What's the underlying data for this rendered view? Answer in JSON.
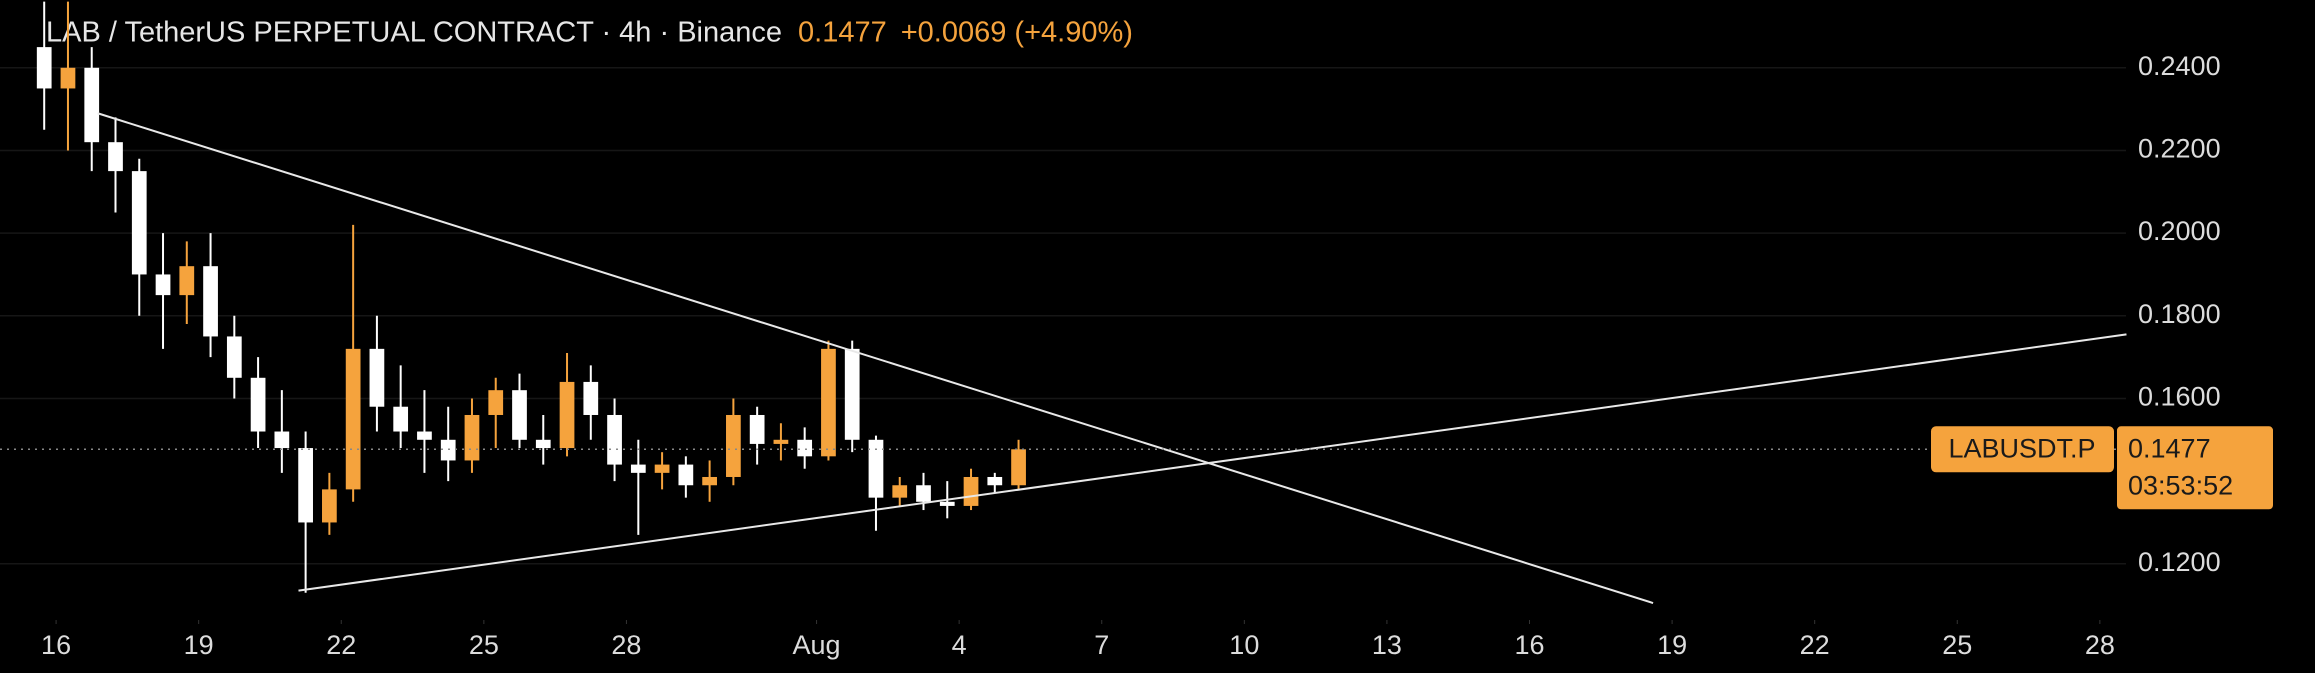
{
  "chart_data": {
    "type": "candlestick",
    "title": "LAB / TetherUS PERPETUAL CONTRACT · 4h · Binance",
    "last_price": 0.1477,
    "change": "+0.0069 (+4.90%)",
    "symbol": "LABUSDT.P",
    "countdown": "03:53:52",
    "up_color": "#f5a33d",
    "down_color": "#ffffff",
    "x": [
      15.75,
      16.25,
      16.75,
      17.25,
      17.75,
      18.25,
      18.75,
      19.25,
      19.75,
      20.25,
      20.75,
      21.25,
      21.75,
      22.25,
      22.75,
      23.25,
      23.75,
      24.25,
      24.75,
      25.25,
      25.75,
      26.25,
      26.75,
      27.25,
      27.75,
      28.25,
      28.75,
      29.25,
      29.75,
      30.25,
      30.75,
      31.25,
      31.75,
      32.25,
      32.75,
      33.25,
      33.75,
      34.25,
      34.75,
      35.25,
      35.75,
      36.25
    ],
    "open": [
      0.245,
      0.235,
      0.24,
      0.222,
      0.215,
      0.19,
      0.185,
      0.192,
      0.175,
      0.165,
      0.152,
      0.148,
      0.13,
      0.138,
      0.172,
      0.158,
      0.152,
      0.15,
      0.145,
      0.156,
      0.162,
      0.15,
      0.148,
      0.164,
      0.156,
      0.144,
      0.142,
      0.144,
      0.139,
      0.141,
      0.156,
      0.149,
      0.15,
      0.146,
      0.172,
      0.15,
      0.136,
      0.139,
      0.135,
      0.134,
      0.141,
      0.139
    ],
    "high": [
      0.256,
      0.256,
      0.245,
      0.228,
      0.218,
      0.2,
      0.198,
      0.2,
      0.18,
      0.17,
      0.162,
      0.152,
      0.142,
      0.202,
      0.18,
      0.168,
      0.162,
      0.158,
      0.16,
      0.165,
      0.166,
      0.156,
      0.171,
      0.168,
      0.16,
      0.15,
      0.147,
      0.146,
      0.145,
      0.16,
      0.158,
      0.154,
      0.153,
      0.174,
      0.174,
      0.151,
      0.141,
      0.142,
      0.14,
      0.143,
      0.142,
      0.15
    ],
    "low": [
      0.225,
      0.22,
      0.215,
      0.205,
      0.18,
      0.172,
      0.178,
      0.17,
      0.16,
      0.148,
      0.142,
      0.113,
      0.127,
      0.135,
      0.152,
      0.148,
      0.142,
      0.14,
      0.142,
      0.148,
      0.148,
      0.144,
      0.146,
      0.15,
      0.14,
      0.127,
      0.138,
      0.136,
      0.135,
      0.139,
      0.144,
      0.145,
      0.143,
      0.145,
      0.147,
      0.128,
      0.134,
      0.133,
      0.131,
      0.133,
      0.137,
      0.138
    ],
    "close": [
      0.235,
      0.24,
      0.222,
      0.215,
      0.19,
      0.185,
      0.192,
      0.175,
      0.165,
      0.152,
      0.148,
      0.13,
      0.138,
      0.172,
      0.158,
      0.152,
      0.15,
      0.145,
      0.156,
      0.162,
      0.15,
      0.148,
      0.164,
      0.156,
      0.144,
      0.142,
      0.144,
      0.139,
      0.141,
      0.156,
      0.149,
      0.15,
      0.146,
      0.172,
      0.15,
      0.136,
      0.139,
      0.135,
      0.134,
      0.141,
      0.139,
      0.1477
    ],
    "trendlines": [
      {
        "x": [
          16.875,
          49.6
        ],
        "y": [
          0.229,
          0.1105
        ]
      },
      {
        "x": [
          21.1,
          59.56
        ],
        "y": [
          0.1135,
          0.1755
        ]
      }
    ],
    "xlim": [
      14.82,
      59.55
    ],
    "xticks": [
      16,
      19,
      22,
      25,
      28,
      {
        "value": 32,
        "label": "Aug"
      },
      {
        "value": 35,
        "label": "4"
      },
      {
        "value": 38,
        "label": "7"
      },
      {
        "value": 41,
        "label": "10"
      },
      {
        "value": 44,
        "label": "13"
      },
      {
        "value": 47,
        "label": "16"
      },
      {
        "value": 50,
        "label": "19"
      },
      {
        "value": 53,
        "label": "22"
      },
      {
        "value": 56,
        "label": "25"
      },
      {
        "value": 59,
        "label": "28"
      }
    ],
    "ylim": [
      0.1064,
      0.2564
    ],
    "yticks": [
      {
        "value": 0.24,
        "label": "0.2400"
      },
      {
        "value": 0.22,
        "label": "0.2200"
      },
      {
        "value": 0.2,
        "label": "0.2000"
      },
      {
        "value": 0.18,
        "label": "0.1800"
      },
      {
        "value": 0.16,
        "label": "0.1600"
      },
      {
        "value": 0.12,
        "label": "0.1200"
      }
    ],
    "grid": true
  }
}
